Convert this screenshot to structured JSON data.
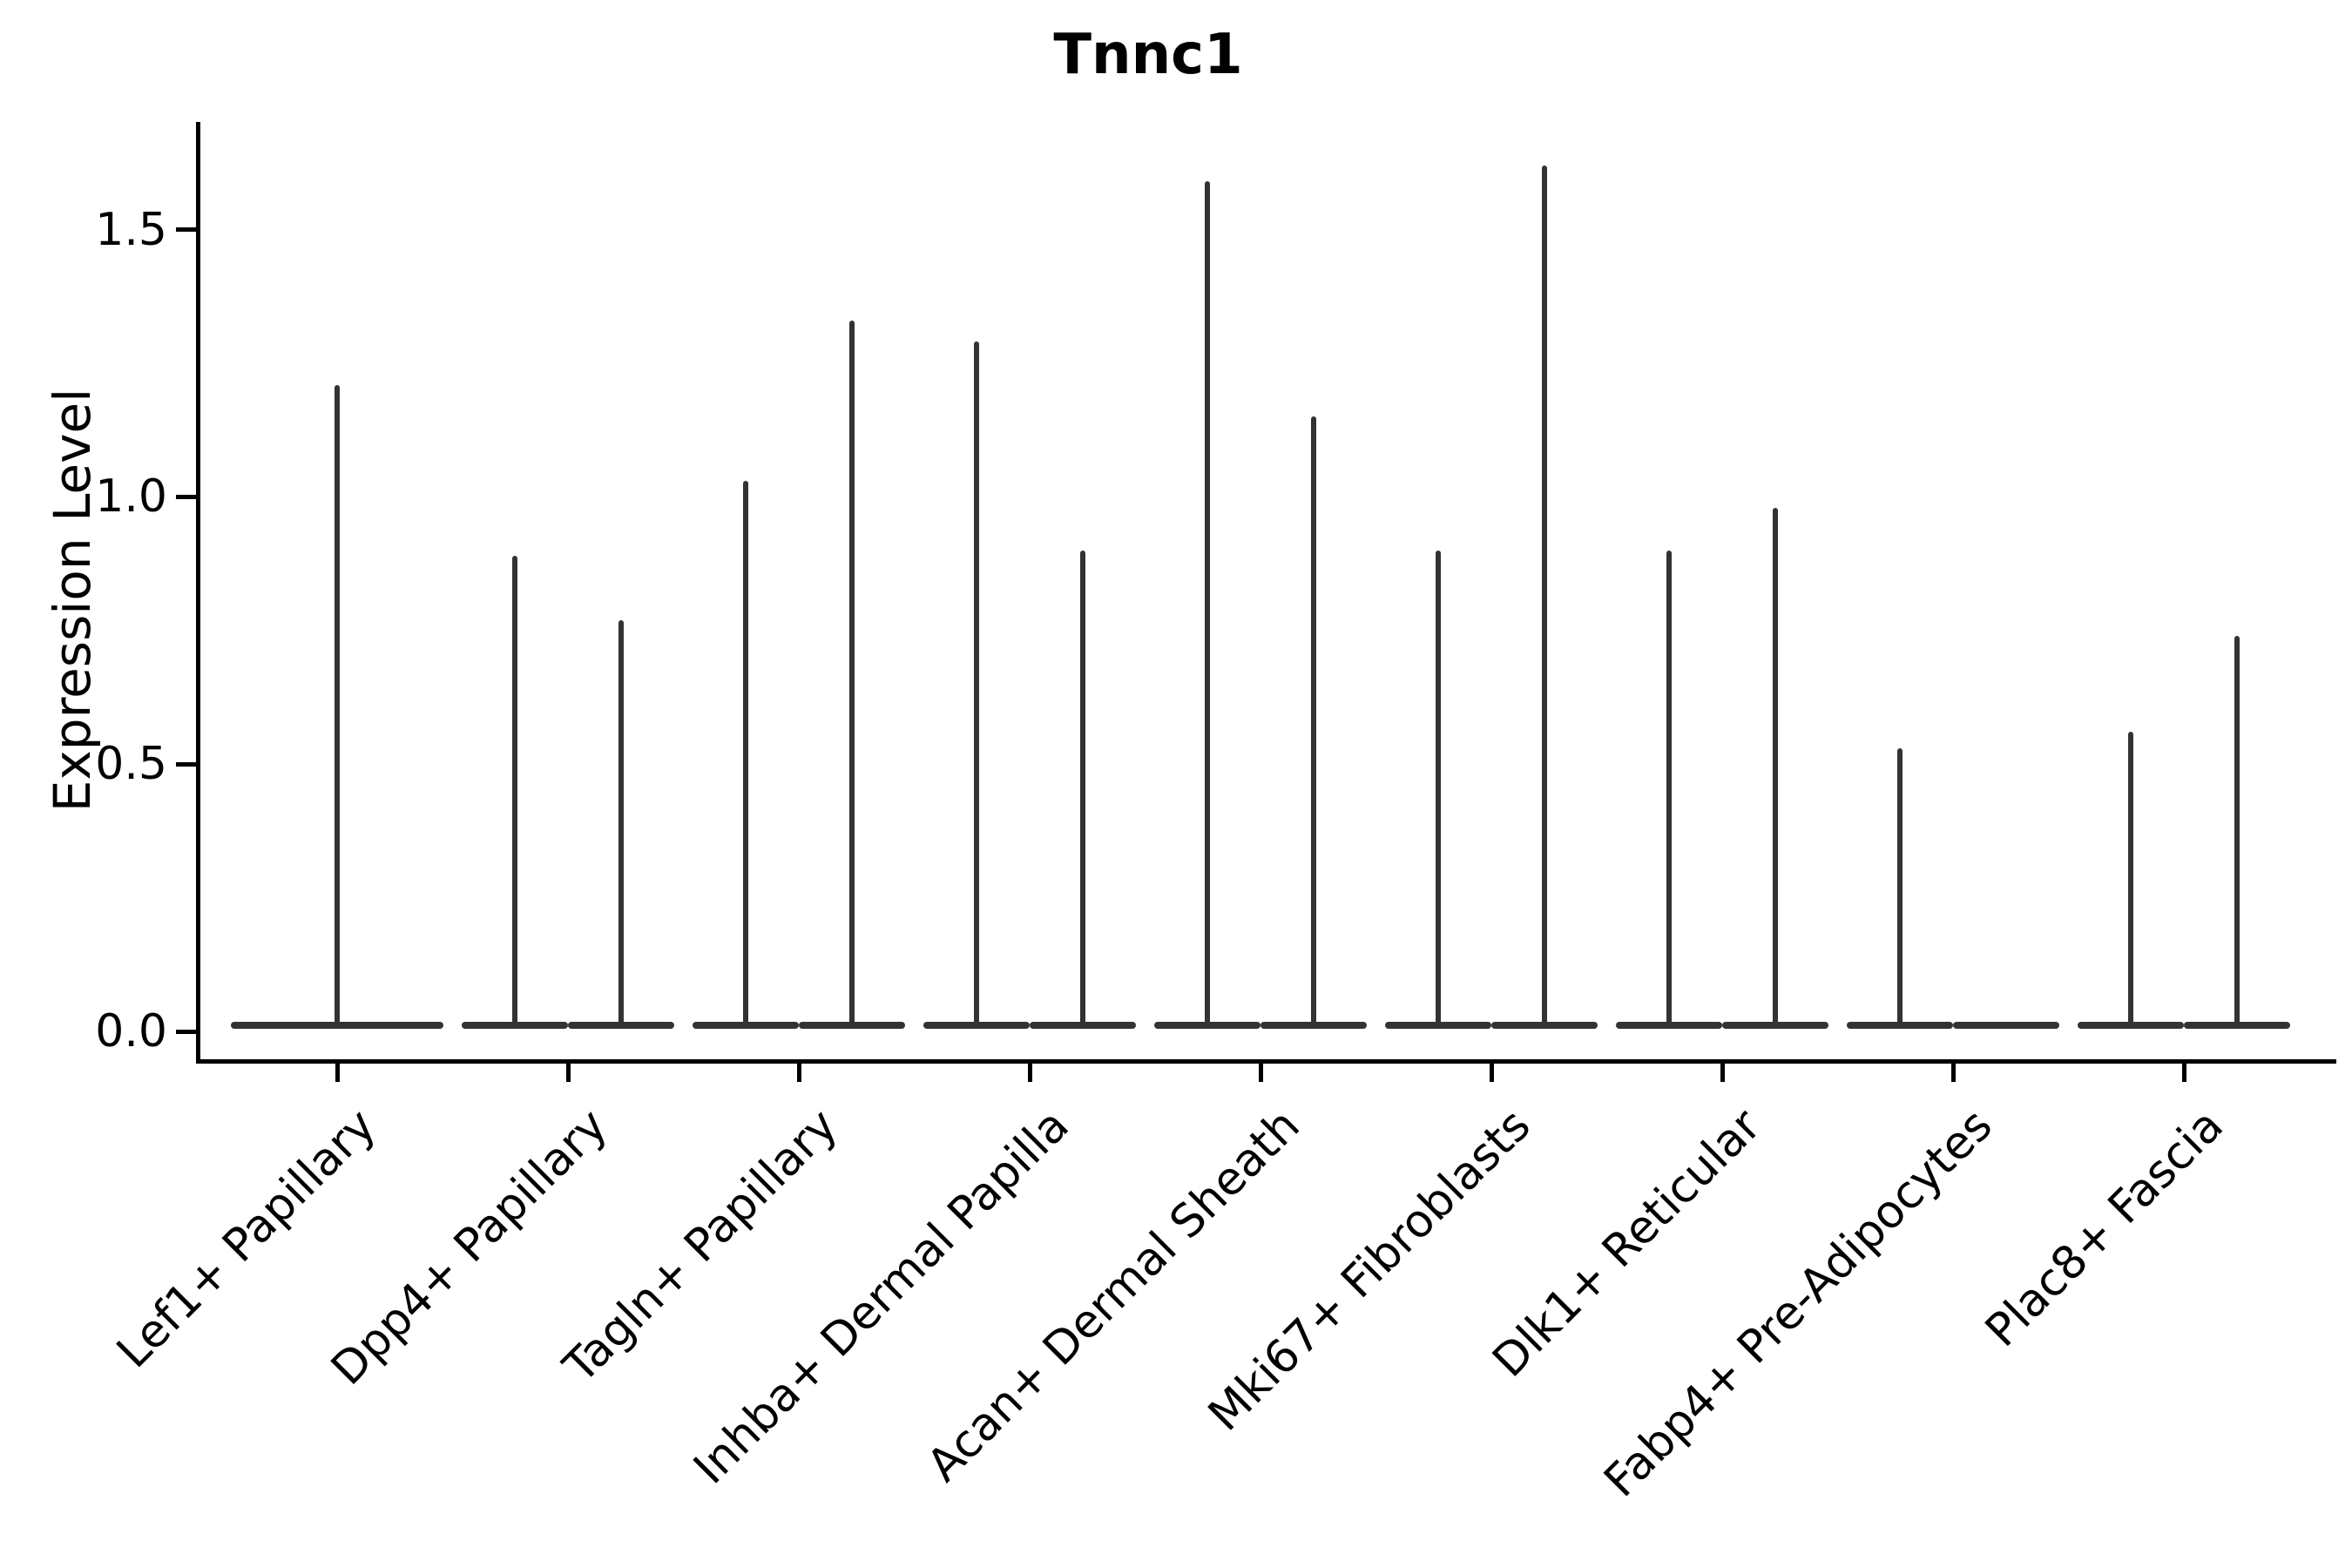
{
  "title": "Tnnc1",
  "y_axis": {
    "label": "Expression Level",
    "ticks": [
      "0.0",
      "0.5",
      "1.0",
      "1.5"
    ],
    "tick_values": [
      0.0,
      0.5,
      1.0,
      1.5
    ]
  },
  "colors": {
    "violin_stroke": "#333333",
    "axis": "#000000",
    "background": "#ffffff"
  },
  "chart_data": {
    "type": "violin",
    "title": "Tnnc1",
    "xlabel": "",
    "ylabel": "Expression Level",
    "ylim": [
      -0.08,
      1.7
    ],
    "grid": false,
    "legend": "none",
    "description": "Single-cell expression violin plot; density is concentrated at 0 so each violin renders as a flat base line with a thin spike up to its maximum expression value.",
    "categories": [
      "Lef1+ Papillary",
      "Dpp4+ Papillary",
      "Tagln+ Papillary",
      "Inhba+ Dermal Papilla",
      "Acan+ Dermal Sheath",
      "Mki67+ Fibroblasts",
      "Dlk1+ Reticular",
      "Fabp4+ Pre-Adipocytes",
      "Plac8+ Fascia"
    ],
    "violin_maxima_per_category": [
      [
        1.21
      ],
      [
        0.89,
        0.77
      ],
      [
        1.03,
        1.33
      ],
      [
        1.29,
        0.9
      ],
      [
        1.59,
        1.15
      ],
      [
        0.9,
        1.62
      ],
      [
        0.9,
        0.98
      ],
      [
        0.53,
        0.0
      ],
      [
        0.56,
        0.74
      ]
    ]
  }
}
